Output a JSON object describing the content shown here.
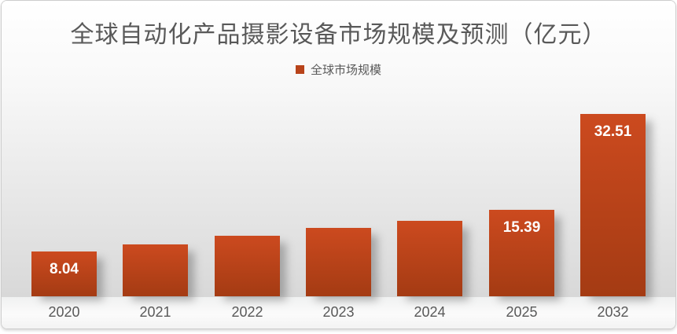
{
  "title": "全球自动化产品摄影设备市场规模及预测（亿元）",
  "legend": {
    "label": "全球市场规模",
    "swatch_color": "#b8431a"
  },
  "colors": {
    "bar_gradient_top": "#cc4a1f",
    "bar_gradient_bottom": "#a43b13",
    "value_label_text": "#ffffff",
    "axis_label_text": "#595959",
    "title_text": "#595959"
  },
  "chart_data": {
    "type": "bar",
    "title": "全球自动化产品摄影设备市场规模及预测（亿元）",
    "xlabel": "",
    "ylabel": "",
    "ylim": [
      0,
      35
    ],
    "grid": false,
    "y_axis_shown": false,
    "legend_position": "top-center",
    "legend_entries": [
      "全球市场规模"
    ],
    "categories": [
      "2020",
      "2021",
      "2022",
      "2023",
      "2024",
      "2025",
      "2032"
    ],
    "series": [
      {
        "name": "全球市场规模",
        "values": [
          8.04,
          9.2,
          10.8,
          12.2,
          13.4,
          15.39,
          32.51
        ],
        "data_labels": [
          "8.04",
          null,
          null,
          null,
          null,
          "15.39",
          "32.51"
        ]
      }
    ]
  }
}
